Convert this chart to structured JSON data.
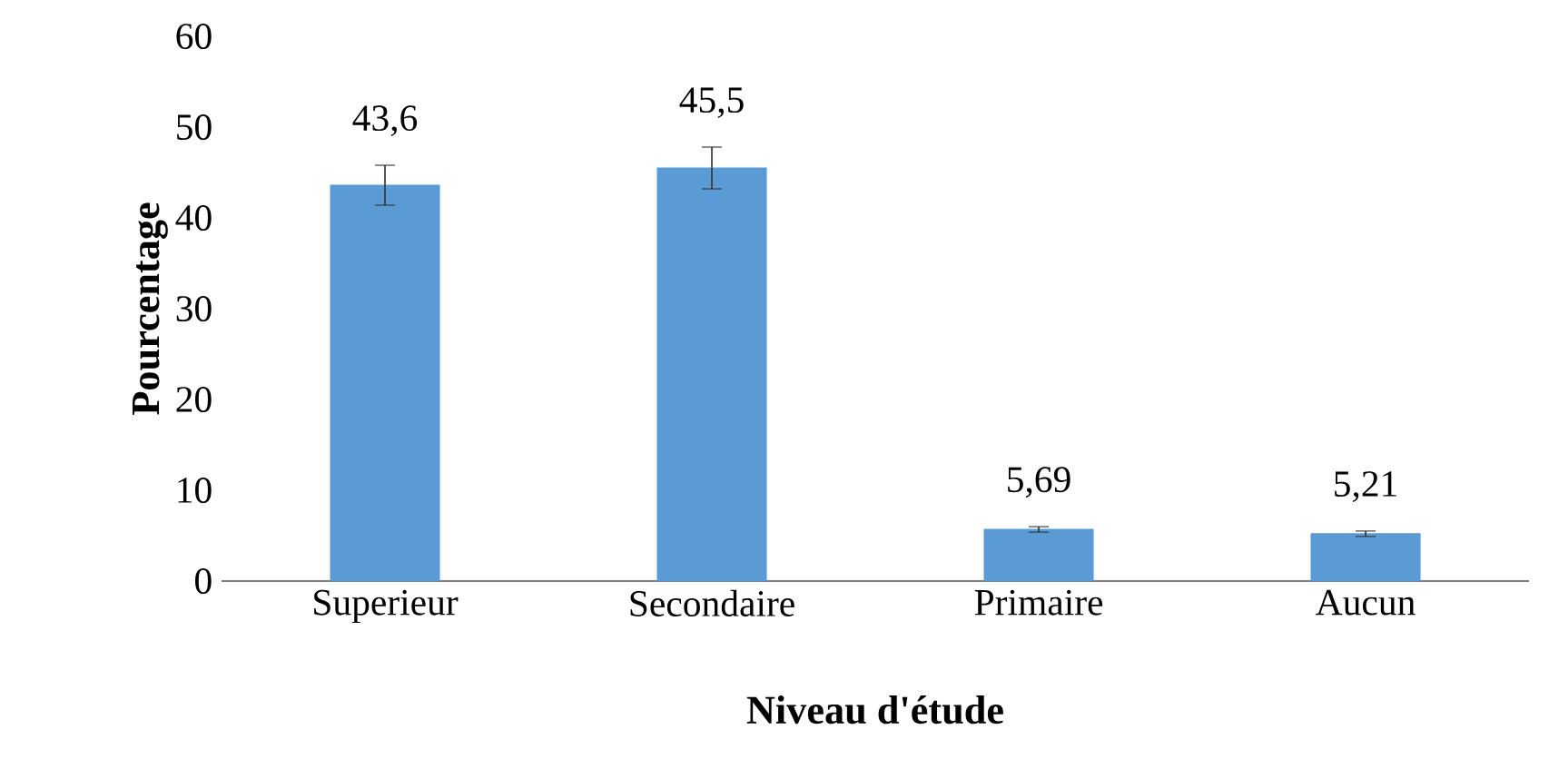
{
  "chart_data": {
    "type": "bar",
    "xlabel": "Niveau d'étude",
    "ylabel": "Pourcentage",
    "categories": [
      "Superieur",
      "Secondaire",
      "Primaire",
      "Aucun"
    ],
    "values": [
      43.6,
      45.5,
      5.69,
      5.21
    ],
    "value_labels": [
      "43,6",
      "45,5",
      "5,69",
      "5,21"
    ],
    "errors": [
      2.2,
      2.3,
      0.3,
      0.3
    ],
    "color": "#5b9bd5",
    "ylim": [
      0,
      60
    ],
    "yticks": [
      0,
      10,
      20,
      30,
      40,
      50,
      60
    ]
  }
}
